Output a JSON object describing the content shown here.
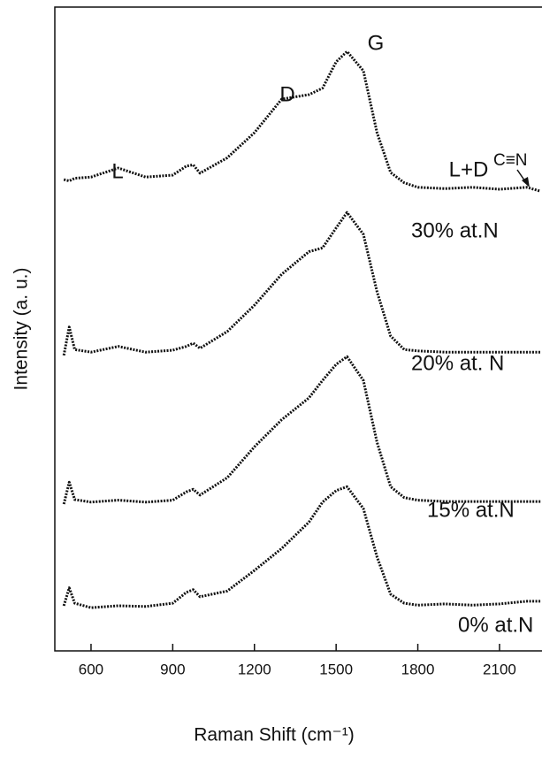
{
  "chart_data": {
    "type": "line",
    "x_label": "Raman Shift (cm⁻¹)",
    "y_label": "Intensity (a. u.)",
    "xlim": [
      467,
      2256
    ],
    "ylim": [
      0,
      100
    ],
    "xticks": [
      600,
      900,
      1200,
      1500,
      1800,
      2100
    ],
    "annotations": [
      "L",
      "D",
      "G",
      "L+D",
      "C≡N"
    ],
    "x": [
      500,
      520,
      540,
      600,
      700,
      800,
      900,
      950,
      975,
      1000,
      1100,
      1200,
      1300,
      1400,
      1450,
      1500,
      1540,
      1600,
      1650,
      1700,
      1750,
      1800,
      1900,
      2000,
      2100,
      2200,
      2250
    ],
    "series": [
      {
        "name": "30%  at.N",
        "color": "#111111",
        "values": [
          73.2,
          73.0,
          73.4,
          73.6,
          75.0,
          73.6,
          73.9,
          75.3,
          75.5,
          74.2,
          76.6,
          80.5,
          85.7,
          86.4,
          87.4,
          91.5,
          93.1,
          90.1,
          80.5,
          74.3,
          72.7,
          72.0,
          71.8,
          72.0,
          71.7,
          72.0,
          71.4
        ]
      },
      {
        "name": "20% at. N",
        "color": "#111111",
        "values": [
          45.9,
          50.3,
          46.8,
          46.4,
          47.3,
          46.4,
          46.7,
          47.3,
          47.8,
          47.0,
          49.6,
          53.7,
          58.5,
          62.0,
          62.6,
          65.7,
          68.1,
          64.7,
          55.8,
          48.9,
          46.8,
          46.6,
          46.4,
          46.4,
          46.4,
          46.4,
          46.4
        ]
      },
      {
        "name": "15% at.N",
        "color": "#111111",
        "values": [
          22.8,
          26.2,
          23.5,
          23.1,
          23.4,
          23.1,
          23.4,
          24.7,
          25.1,
          24.2,
          26.9,
          31.7,
          35.9,
          39.3,
          42.0,
          44.5,
          45.7,
          42.0,
          32.4,
          25.5,
          23.8,
          23.4,
          23.2,
          23.2,
          23.2,
          23.2,
          23.2
        ]
      },
      {
        "name": "0% at.N",
        "color": "#111111",
        "values": [
          7.0,
          9.8,
          7.4,
          6.7,
          7.0,
          6.9,
          7.4,
          9.1,
          9.5,
          8.4,
          9.3,
          12.5,
          15.9,
          20.0,
          23.1,
          24.9,
          25.5,
          22.1,
          14.6,
          8.8,
          7.4,
          7.1,
          7.3,
          7.1,
          7.3,
          7.7,
          7.7
        ]
      }
    ]
  }
}
